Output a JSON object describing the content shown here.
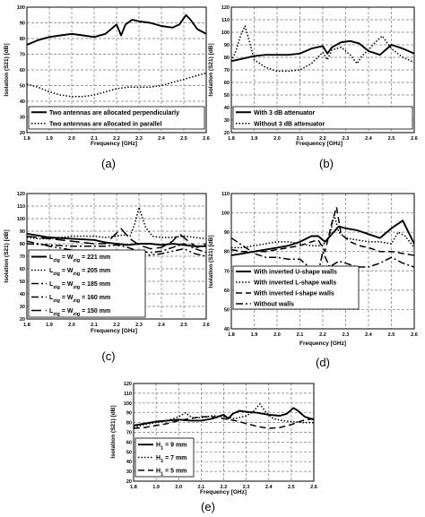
{
  "chart_data": [
    {
      "type": "line",
      "panel_label": "(a)",
      "xlabel": "Frequency [GHz]",
      "ylabel": "Isolation (S21) [dB]",
      "xlim": [
        1.8,
        2.6
      ],
      "ylim": [
        20,
        100
      ],
      "xticks": [
        "1.8",
        "1.9",
        "2.0",
        "2.1",
        "2.2",
        "2.3",
        "2.4",
        "2.5",
        "2.6"
      ],
      "yticks": [
        "20",
        "30",
        "40",
        "50",
        "60",
        "70",
        "80",
        "90",
        "100"
      ],
      "grid": true,
      "legend_position": "bottom",
      "series": [
        {
          "name": "Two antennas are allocated perpendicularly",
          "style": "solid",
          "x": [
            1.8,
            1.85,
            1.9,
            1.95,
            2.0,
            2.05,
            2.1,
            2.15,
            2.2,
            2.22,
            2.24,
            2.27,
            2.3,
            2.35,
            2.4,
            2.45,
            2.48,
            2.51,
            2.53,
            2.56,
            2.6
          ],
          "y": [
            76,
            79,
            81,
            82,
            83,
            82,
            81,
            83,
            89,
            82,
            89,
            92,
            91,
            90,
            88,
            87,
            89,
            95,
            92,
            86,
            83
          ]
        },
        {
          "name": "Two antennas are allocated in parallel",
          "style": "dotted",
          "x": [
            1.8,
            1.85,
            1.9,
            1.95,
            2.0,
            2.05,
            2.1,
            2.15,
            2.2,
            2.25,
            2.3,
            2.35,
            2.4,
            2.45,
            2.5,
            2.55,
            2.6
          ],
          "y": [
            51,
            49,
            46,
            44,
            43,
            43,
            44,
            46,
            48,
            49,
            49,
            49,
            50,
            52,
            54,
            56,
            58
          ]
        }
      ]
    },
    {
      "type": "line",
      "panel_label": "(b)",
      "xlabel": "Frequency [GHz]",
      "ylabel": "Isolation (S21) [dB]",
      "xlim": [
        1.8,
        2.6
      ],
      "ylim": [
        20,
        120
      ],
      "xticks": [
        "1.8",
        "1.9",
        "2.0",
        "2.1",
        "2.2",
        "2.3",
        "2.4",
        "2.5",
        "2.6"
      ],
      "yticks": [
        "20",
        "30",
        "40",
        "50",
        "60",
        "70",
        "80",
        "90",
        "100",
        "110",
        "120"
      ],
      "grid": true,
      "legend_position": "bottom",
      "series": [
        {
          "name": "With 3 dB attenuator",
          "style": "solid",
          "x": [
            1.8,
            1.85,
            1.9,
            1.95,
            2.0,
            2.05,
            2.1,
            2.15,
            2.2,
            2.22,
            2.24,
            2.28,
            2.32,
            2.36,
            2.4,
            2.45,
            2.5,
            2.55,
            2.6
          ],
          "y": [
            77,
            79,
            81,
            82,
            82,
            82,
            83,
            87,
            89,
            83,
            88,
            92,
            93,
            91,
            85,
            82,
            90,
            87,
            83
          ]
        },
        {
          "name": "Without 3 dB attenuator",
          "style": "dotted",
          "x": [
            1.8,
            1.82,
            1.84,
            1.86,
            1.88,
            1.9,
            1.95,
            2.0,
            2.05,
            2.1,
            2.15,
            2.2,
            2.22,
            2.24,
            2.28,
            2.32,
            2.35,
            2.37,
            2.4,
            2.43,
            2.46,
            2.5,
            2.55,
            2.6
          ],
          "y": [
            77,
            85,
            97,
            105,
            92,
            78,
            72,
            69,
            69,
            70,
            75,
            84,
            78,
            86,
            88,
            82,
            75,
            81,
            86,
            92,
            97,
            87,
            80,
            76
          ]
        }
      ]
    },
    {
      "type": "line",
      "panel_label": "(c)",
      "xlabel": "Frequency [GHz]",
      "ylabel": "Isolation (S21) [dB]",
      "xlim": [
        1.8,
        2.6
      ],
      "ylim": [
        20,
        120
      ],
      "xticks": [
        "1.8",
        "1.9",
        "2.0",
        "2.1",
        "2.2",
        "2.3",
        "2.4",
        "2.5",
        "2.6"
      ],
      "yticks": [
        "20",
        "30",
        "40",
        "50",
        "60",
        "70",
        "80",
        "90",
        "100",
        "110",
        "120"
      ],
      "grid": true,
      "legend_position": "bottom-left",
      "series": [
        {
          "name": "L_zig = W_zig = 221 mm",
          "label_parts": [
            "L",
            "zig",
            " = W",
            "zig",
            " = 221 mm"
          ],
          "style": "solid",
          "x": [
            1.8,
            1.9,
            2.0,
            2.1,
            2.15,
            2.2,
            2.25,
            2.3,
            2.35,
            2.4,
            2.45,
            2.5,
            2.55,
            2.6
          ],
          "y": [
            88,
            85,
            84,
            83,
            81,
            80,
            79,
            80,
            80,
            79,
            80,
            79,
            78,
            78
          ]
        },
        {
          "name": "L_zig = W_zig = 205 mm",
          "label_parts": [
            "L",
            "zig",
            " = W",
            "zig",
            " = 205 mm"
          ],
          "style": "dotted",
          "x": [
            1.8,
            1.85,
            1.9,
            1.95,
            2.0,
            2.05,
            2.1,
            2.15,
            2.2,
            2.23,
            2.26,
            2.28,
            2.3,
            2.33,
            2.36,
            2.4,
            2.45,
            2.5,
            2.55,
            2.6
          ],
          "y": [
            85,
            84,
            84,
            85,
            86,
            86,
            86,
            85,
            86,
            87,
            86,
            95,
            109,
            93,
            86,
            85,
            85,
            86,
            85,
            84
          ]
        },
        {
          "name": "L_zig = W_zig = 185 mm",
          "label_parts": [
            "L",
            "zig",
            " = W",
            "zig",
            " = 185 mm"
          ],
          "style": "dashdot",
          "x": [
            1.8,
            1.9,
            2.0,
            2.1,
            2.15,
            2.2,
            2.25,
            2.3,
            2.35,
            2.4,
            2.45,
            2.5,
            2.55,
            2.6
          ],
          "y": [
            80,
            79,
            78,
            78,
            78,
            79,
            77,
            74,
            73,
            74,
            77,
            80,
            76,
            73
          ]
        },
        {
          "name": "L_zig = W_zig = 160 mm",
          "label_parts": [
            "L",
            "zig",
            " = W",
            "zig",
            " = 160 mm"
          ],
          "style": "dashdotdot",
          "x": [
            1.8,
            1.9,
            2.0,
            2.1,
            2.15,
            2.2,
            2.25,
            2.3,
            2.35,
            2.4,
            2.45,
            2.5,
            2.55,
            2.6
          ],
          "y": [
            82,
            78,
            75,
            73,
            72,
            73,
            72,
            71,
            71,
            72,
            74,
            76,
            72,
            70
          ]
        },
        {
          "name": "L_zig = W_zig = 150 mm",
          "label_parts": [
            "L",
            "zig",
            " = W",
            "zig",
            " = 150 mm"
          ],
          "style": "longdash",
          "x": [
            1.8,
            1.9,
            2.0,
            2.1,
            2.15,
            2.18,
            2.22,
            2.26,
            2.3,
            2.35,
            2.4,
            2.45,
            2.48,
            2.52,
            2.56,
            2.6
          ],
          "y": [
            86,
            84,
            82,
            80,
            80,
            85,
            92,
            84,
            79,
            76,
            77,
            82,
            88,
            82,
            77,
            80
          ]
        }
      ]
    },
    {
      "type": "line",
      "panel_label": "(d)",
      "xlabel": "Frequency [GHz]",
      "ylabel": "Isolation (S21) [dB]",
      "xlim": [
        1.8,
        2.6
      ],
      "ylim": [
        40,
        110
      ],
      "xticks": [
        "1.8",
        "1.9",
        "2.0",
        "2.1",
        "2.2",
        "2.3",
        "2.4",
        "2.5",
        "2.6"
      ],
      "yticks": [
        "40",
        "50",
        "60",
        "70",
        "80",
        "90",
        "100",
        "110"
      ],
      "grid": true,
      "legend_position": "bottom",
      "series": [
        {
          "name": "With inverted U-shape walls",
          "style": "solid",
          "x": [
            1.8,
            1.85,
            1.9,
            1.95,
            2.0,
            2.05,
            2.1,
            2.15,
            2.18,
            2.21,
            2.24,
            2.27,
            2.3,
            2.35,
            2.4,
            2.45,
            2.5,
            2.55,
            2.6
          ],
          "y": [
            78,
            79,
            80,
            81,
            82,
            83,
            85,
            88,
            88,
            85,
            89,
            93,
            92,
            91,
            89,
            87,
            92,
            96,
            84
          ]
        },
        {
          "name": "With inverted L-shape walls",
          "style": "dotted",
          "x": [
            1.8,
            1.85,
            1.9,
            1.95,
            2.0,
            2.05,
            2.1,
            2.15,
            2.2,
            2.23,
            2.25,
            2.27,
            2.3,
            2.35,
            2.4,
            2.45,
            2.5,
            2.53,
            2.56,
            2.6
          ],
          "y": [
            82,
            82,
            83,
            84,
            85,
            85,
            84,
            83,
            83,
            88,
            99,
            90,
            87,
            86,
            85,
            85,
            84,
            90,
            88,
            82
          ]
        },
        {
          "name": "With inverted I-shape walls",
          "style": "dashed",
          "x": [
            1.8,
            1.85,
            1.9,
            1.95,
            2.0,
            2.05,
            2.1,
            2.15,
            2.18,
            2.21,
            2.24,
            2.26,
            2.28,
            2.32,
            2.36,
            2.4,
            2.45,
            2.5,
            2.55,
            2.6
          ],
          "y": [
            81,
            80,
            80,
            80,
            81,
            82,
            83,
            85,
            86,
            80,
            95,
            103,
            89,
            85,
            83,
            82,
            80,
            80,
            79,
            78
          ]
        },
        {
          "name": "Without walls",
          "style": "dashdot",
          "x": [
            1.8,
            1.85,
            1.9,
            1.95,
            2.0,
            2.05,
            2.1,
            2.14,
            2.17,
            2.2,
            2.23,
            2.27,
            2.3,
            2.35,
            2.4,
            2.45,
            2.5,
            2.55,
            2.6
          ],
          "y": [
            87,
            83,
            79,
            77,
            77,
            76,
            76,
            72,
            63,
            80,
            72,
            75,
            74,
            72,
            72,
            74,
            77,
            74,
            72
          ]
        }
      ]
    },
    {
      "type": "line",
      "panel_label": "(e)",
      "xlabel": "Frequency [GHz]",
      "ylabel": "Isolation (S21) [dB]",
      "xlim": [
        1.8,
        2.6
      ],
      "ylim": [
        20,
        120
      ],
      "xticks": [
        "1.8",
        "1.9",
        "2.0",
        "2.1",
        "2.2",
        "2.3",
        "2.4",
        "2.5",
        "2.6"
      ],
      "yticks": [
        "20",
        "30",
        "40",
        "50",
        "60",
        "70",
        "80",
        "90",
        "100",
        "110",
        "120"
      ],
      "grid": true,
      "legend_position": "bottom-left",
      "series": [
        {
          "name": "H_1 = 9 mm",
          "label_parts": [
            "H",
            "1",
            " = 9 mm"
          ],
          "style": "solid",
          "x": [
            1.8,
            1.85,
            1.9,
            1.95,
            2.0,
            2.05,
            2.1,
            2.15,
            2.2,
            2.22,
            2.24,
            2.27,
            2.3,
            2.35,
            2.4,
            2.45,
            2.48,
            2.51,
            2.53,
            2.56,
            2.6
          ],
          "y": [
            77,
            79,
            81,
            82,
            83,
            82,
            82,
            84,
            88,
            84,
            89,
            92,
            91,
            90,
            88,
            87,
            89,
            95,
            92,
            86,
            83
          ]
        },
        {
          "name": "H_1 = 7 mm",
          "label_parts": [
            "H",
            "1",
            " = 7 mm"
          ],
          "style": "dotted",
          "x": [
            1.8,
            1.85,
            1.9,
            1.95,
            2.0,
            2.03,
            2.06,
            2.1,
            2.15,
            2.2,
            2.25,
            2.3,
            2.33,
            2.36,
            2.39,
            2.42,
            2.46,
            2.5,
            2.55,
            2.6
          ],
          "y": [
            75,
            78,
            80,
            82,
            86,
            90,
            85,
            85,
            87,
            86,
            84,
            87,
            91,
            99,
            90,
            84,
            82,
            81,
            80,
            80
          ]
        },
        {
          "name": "H_1 = 5 mm",
          "label_parts": [
            "H",
            "1",
            " = 5 mm"
          ],
          "style": "dashed",
          "x": [
            1.8,
            1.85,
            1.9,
            1.95,
            2.0,
            2.05,
            2.1,
            2.15,
            2.2,
            2.25,
            2.3,
            2.35,
            2.4,
            2.45,
            2.5,
            2.55,
            2.6
          ],
          "y": [
            74,
            75,
            77,
            79,
            82,
            84,
            86,
            86,
            84,
            82,
            79,
            76,
            74,
            75,
            78,
            82,
            84
          ]
        }
      ]
    }
  ]
}
